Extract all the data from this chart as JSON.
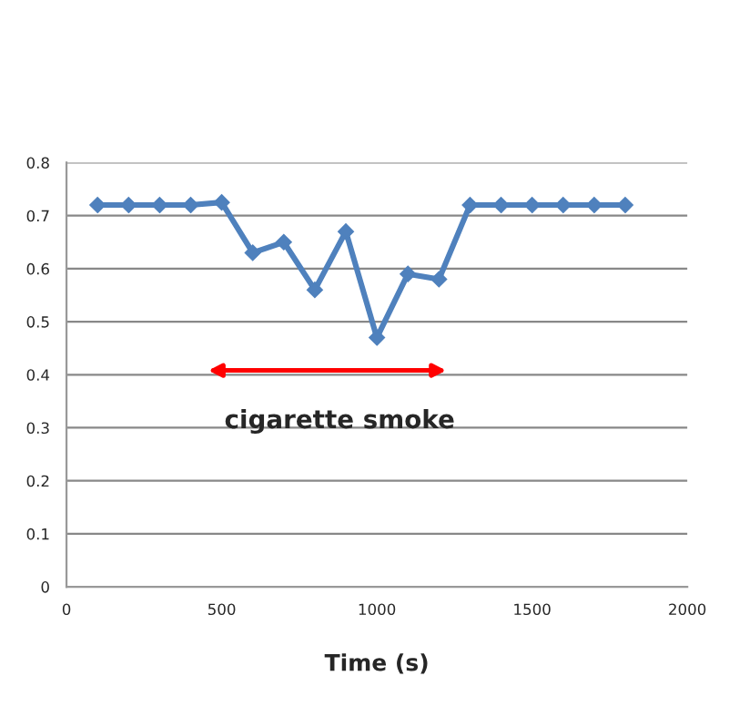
{
  "chart_data": {
    "type": "line",
    "xlabel": "Time (s)",
    "x": [
      100,
      200,
      300,
      400,
      500,
      600,
      700,
      800,
      900,
      1000,
      1100,
      1200,
      1300,
      1400,
      1500,
      1600,
      1700,
      1800
    ],
    "series": [
      {
        "color": "#4f81bd",
        "values": [
          0.72,
          0.72,
          0.72,
          0.72,
          0.725,
          0.63,
          0.65,
          0.56,
          0.67,
          0.47,
          0.59,
          0.58,
          0.72,
          0.72,
          0.72,
          0.72,
          0.72,
          0.72
        ]
      }
    ],
    "xlim": [
      0,
      2000
    ],
    "xticks": [
      0,
      500,
      1000,
      1500,
      2000
    ],
    "ylim": [
      0,
      0.8
    ],
    "yticks": [
      0,
      0.1,
      0.2,
      0.3,
      0.4,
      0.5,
      0.6,
      0.7,
      0.8
    ],
    "annotations": [
      "cigarette smoke"
    ],
    "grid": "y",
    "marker": "diamond",
    "line_style": "solid",
    "legend": false
  }
}
